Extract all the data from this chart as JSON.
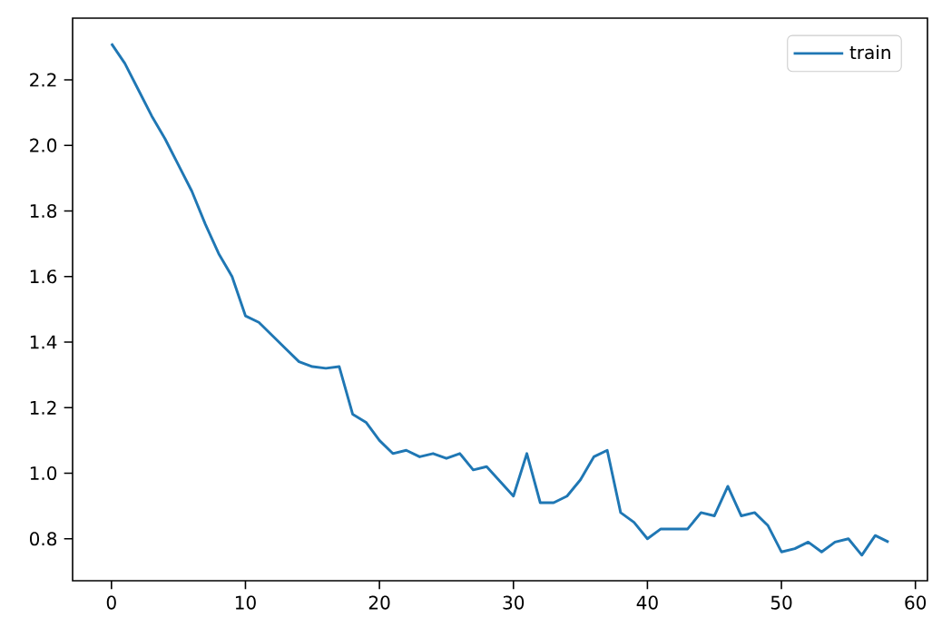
{
  "chart_data": {
    "type": "line",
    "x": [
      0,
      1,
      2,
      3,
      4,
      5,
      6,
      7,
      8,
      9,
      10,
      11,
      12,
      13,
      14,
      15,
      16,
      17,
      18,
      19,
      20,
      21,
      22,
      23,
      24,
      25,
      26,
      27,
      28,
      29,
      30,
      31,
      32,
      33,
      34,
      35,
      36,
      37,
      38,
      39,
      40,
      41,
      42,
      43,
      44,
      45,
      46,
      47,
      48,
      49,
      50,
      51,
      52,
      53,
      54,
      55,
      56,
      57,
      58
    ],
    "series": [
      {
        "name": "train",
        "color": "#1f77b4",
        "values": [
          2.31,
          2.25,
          2.17,
          2.09,
          2.02,
          1.94,
          1.86,
          1.76,
          1.67,
          1.6,
          1.48,
          1.46,
          1.42,
          1.38,
          1.34,
          1.325,
          1.32,
          1.325,
          1.18,
          1.155,
          1.1,
          1.06,
          1.07,
          1.05,
          1.06,
          1.045,
          1.06,
          1.01,
          1.02,
          0.975,
          0.93,
          1.06,
          0.91,
          0.91,
          0.93,
          0.98,
          1.05,
          1.07,
          0.88,
          0.85,
          0.8,
          0.83,
          0.83,
          0.83,
          0.88,
          0.87,
          0.96,
          0.87,
          0.88,
          0.84,
          0.76,
          0.77,
          0.79,
          0.76,
          0.79,
          0.8,
          0.75,
          0.81,
          0.79
        ]
      }
    ],
    "xlim": [
      -2.9,
      60.9
    ],
    "ylim": [
      0.672,
      2.388
    ],
    "xticks": [
      0,
      10,
      20,
      30,
      40,
      50,
      60
    ],
    "yticks": [
      {
        "value": 0.8,
        "label": "0.8"
      },
      {
        "value": 1.0,
        "label": "1.0"
      },
      {
        "value": 1.2,
        "label": "1.2"
      },
      {
        "value": 1.4,
        "label": "1.4"
      },
      {
        "value": 1.6,
        "label": "1.6"
      },
      {
        "value": 1.8,
        "label": "1.8"
      },
      {
        "value": 2.0,
        "label": "2.0"
      },
      {
        "value": 2.2,
        "label": "2.2"
      }
    ],
    "legend": "top right",
    "grid": false
  }
}
